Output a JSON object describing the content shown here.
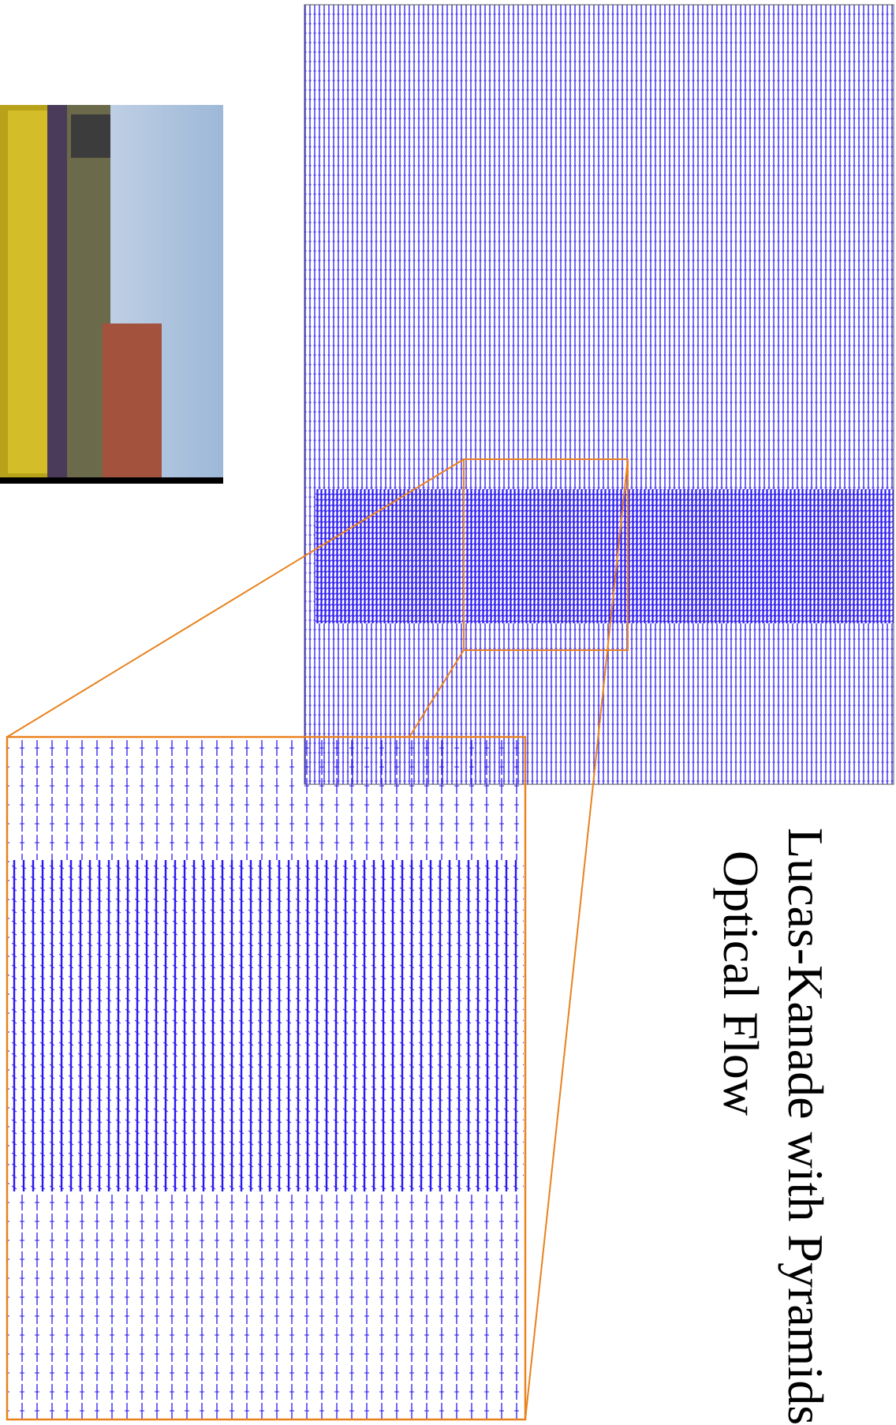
{
  "title": {
    "lines": [
      "Lucas-Kanade with Pyramids",
      "Optical Flow"
    ]
  }
}
